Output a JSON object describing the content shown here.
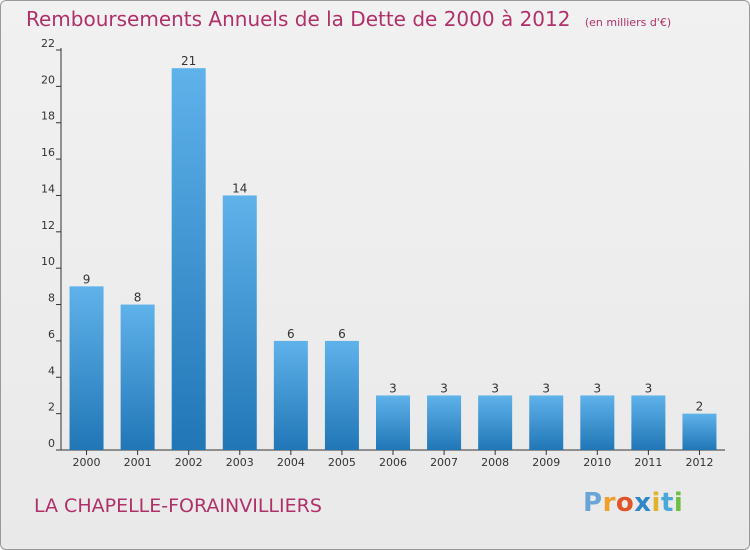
{
  "header": {
    "title": "Remboursements Annuels de la Dette de 2000 à 2012",
    "subtitle": "(en milliers d'€)"
  },
  "footer": {
    "town": "LA CHAPELLE-FORAINVILLIERS",
    "logo": [
      "P",
      "r",
      "o",
      "x",
      "i",
      "t",
      "i"
    ]
  },
  "colors": {
    "title": "#b0306a",
    "bar_top": "#5fb2ea",
    "bar_bottom": "#2176b6",
    "logo": [
      "#6aa5d8",
      "#f0a02a",
      "#e0542a",
      "#2f86c9",
      "#e1b22c",
      "#4aa8d8",
      "#6fbf45"
    ]
  },
  "chart_data": {
    "type": "bar",
    "categories": [
      "2000",
      "2001",
      "2002",
      "2003",
      "2004",
      "2005",
      "2006",
      "2007",
      "2008",
      "2009",
      "2010",
      "2011",
      "2012"
    ],
    "values": [
      9,
      8,
      21,
      14,
      6,
      6,
      3,
      3,
      3,
      3,
      3,
      3,
      2
    ],
    "data_labels": [
      "9",
      "8",
      "21",
      "14",
      "6",
      "6",
      "3",
      "3",
      "3",
      "3",
      "3",
      "3",
      "2"
    ],
    "yticks": [
      "0",
      "2",
      "4",
      "6",
      "8",
      "10",
      "12",
      "14",
      "16",
      "18",
      "20",
      "22"
    ],
    "ylim": [
      0,
      22
    ],
    "grid": false,
    "title": "Remboursements Annuels de la Dette de 2000 à 2012",
    "xlabel": "",
    "ylabel": ""
  }
}
